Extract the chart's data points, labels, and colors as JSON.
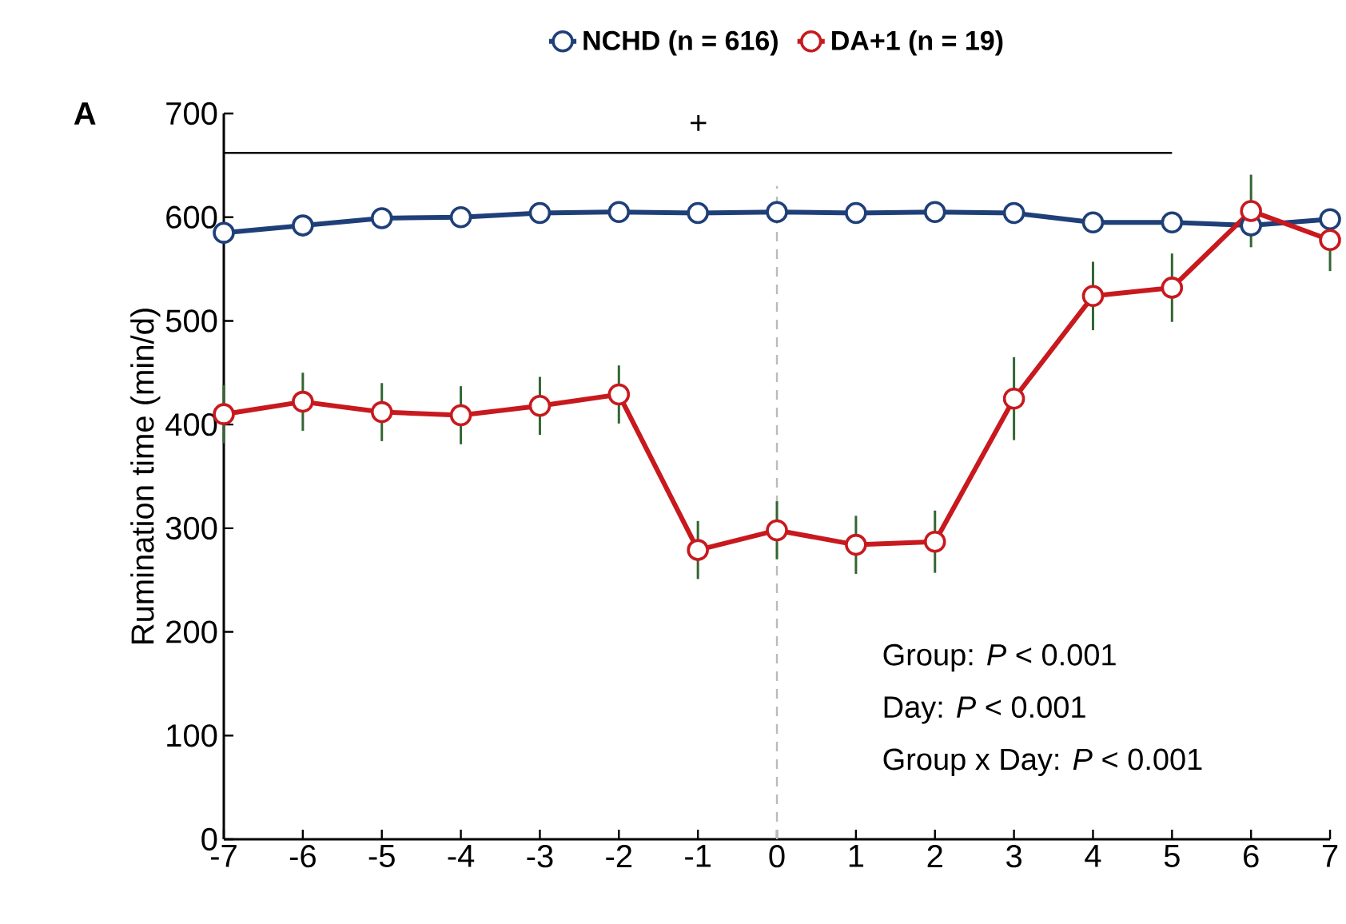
{
  "chart_data": {
    "type": "line",
    "ylabel": "Rumination time (min/d)",
    "x": [
      -7,
      -6,
      -5,
      -4,
      -3,
      -2,
      -1,
      0,
      1,
      2,
      3,
      4,
      5,
      6,
      7
    ],
    "xlim": [
      -7,
      7
    ],
    "xticks": [
      -7,
      -6,
      -5,
      -4,
      -3,
      -2,
      -1,
      0,
      1,
      2,
      3,
      4,
      5,
      6,
      7
    ],
    "ylim": [
      0,
      700
    ],
    "yticks": [
      0,
      100,
      200,
      300,
      400,
      500,
      600,
      700
    ],
    "series": [
      {
        "name": "NCHD (n = 616)",
        "color": "#1f3f78",
        "values": [
          585,
          592,
          599,
          600,
          604,
          605,
          604,
          605,
          604,
          605,
          604,
          595,
          595,
          592,
          598
        ]
      },
      {
        "type": "line",
        "color": "#000000",
        "x": [
          -7,
          5
        ],
        "values": [
          662,
          662
        ],
        "marker": "none"
      },
      {
        "name": "DA+1 (n = 19)",
        "color": "#c8191e",
        "values": [
          410,
          422,
          412,
          409,
          418,
          429,
          279,
          298,
          284,
          287,
          425,
          524,
          532,
          606,
          578
        ],
        "errors": [
          28,
          28,
          28,
          28,
          28,
          28,
          28,
          28,
          28,
          30,
          40,
          33,
          33,
          35,
          30
        ]
      }
    ],
    "marker": "circle",
    "line_style": "solid",
    "legend": "top",
    "grid": false,
    "ref_lines": [
      {
        "axis": "x",
        "value": 0,
        "color": "#bbbbbb",
        "line_style": "dashed"
      }
    ],
    "annotations": [
      "A",
      "+",
      "Group: *P* < 0.001",
      "Day: *P* < 0.001",
      "Group x Day: *P* < 0.001"
    ]
  }
}
